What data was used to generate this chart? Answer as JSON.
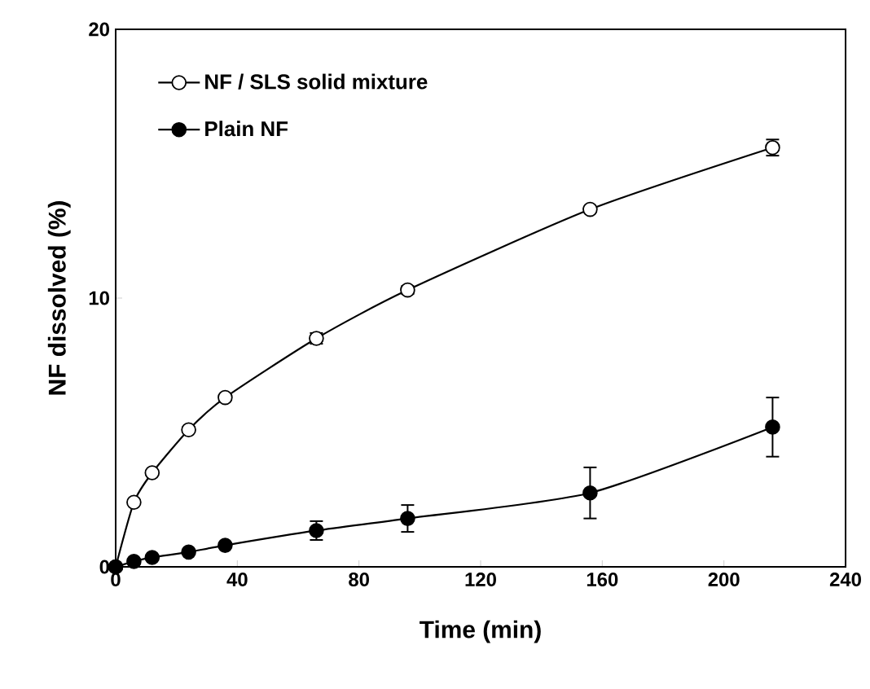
{
  "chart_data": {
    "type": "line",
    "xlabel": "Time (min)",
    "ylabel": "NF dissolved (%)",
    "xlim": [
      0,
      240
    ],
    "ylim": [
      0,
      20
    ],
    "xticks": [
      0,
      40,
      80,
      120,
      160,
      200,
      240
    ],
    "yticks": [
      0,
      10,
      20
    ],
    "legend": "top left",
    "grid": false,
    "marker": "circle",
    "line_style": "solid",
    "series": [
      {
        "name": "NF / SLS solid mixture",
        "color": "#ffffff",
        "x": [
          0,
          6,
          12,
          24,
          36,
          66,
          96,
          156,
          216
        ],
        "values": [
          0,
          2.4,
          3.5,
          5.1,
          6.3,
          8.5,
          10.3,
          13.3,
          15.6
        ],
        "errors": [
          null,
          null,
          null,
          0.1,
          0.1,
          0.2,
          0.15,
          null,
          0.3
        ]
      },
      {
        "name": "Plain NF",
        "color": "#000000",
        "x": [
          0,
          6,
          12,
          24,
          36,
          66,
          96,
          156,
          216
        ],
        "values": [
          0,
          0.2,
          0.35,
          0.55,
          0.8,
          1.35,
          1.8,
          2.75,
          5.2
        ],
        "errors": [
          null,
          null,
          null,
          null,
          null,
          0.35,
          0.5,
          0.95,
          1.1
        ]
      }
    ]
  }
}
